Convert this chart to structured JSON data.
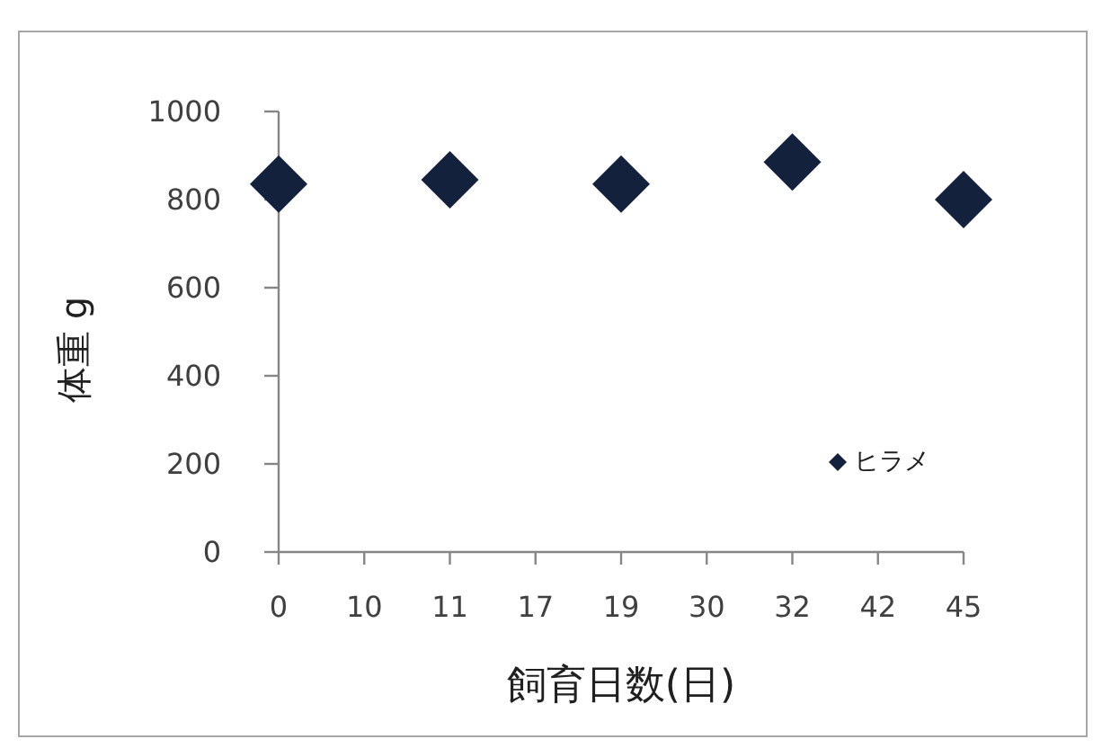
{
  "chart_data": {
    "type": "scatter",
    "xlabel": "飼育日数(日)",
    "ylabel": "体重 g",
    "categories": [
      "0",
      "10",
      "11",
      "17",
      "19",
      "30",
      "32",
      "42",
      "45"
    ],
    "series": [
      {
        "name": "ヒラメ",
        "color": "#14213d",
        "values": [
          835,
          null,
          845,
          null,
          835,
          null,
          885,
          null,
          800
        ]
      }
    ],
    "ylim": [
      0,
      1000
    ],
    "yticks": [
      0,
      200,
      400,
      600,
      800,
      1000
    ],
    "grid": false,
    "legend": "bottom right",
    "marker": "diamond"
  }
}
